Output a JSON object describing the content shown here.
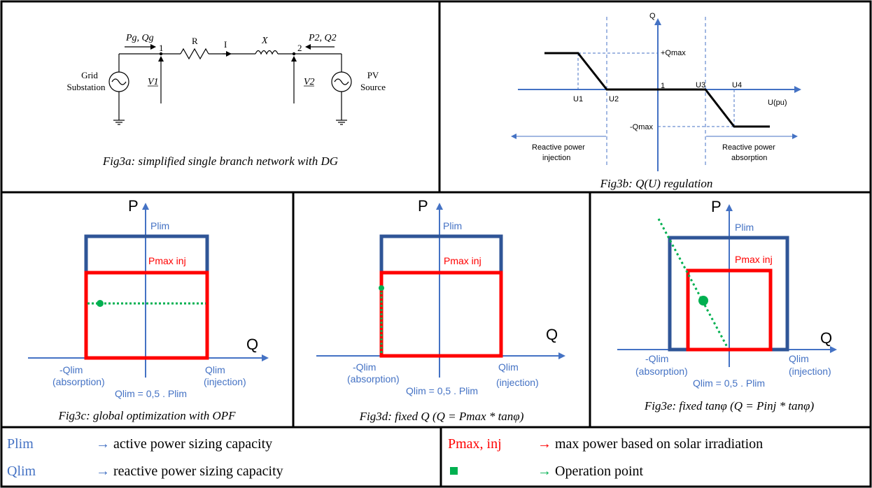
{
  "fig3a": {
    "caption": "Fig3a: simplified single branch network with DG",
    "grid_label_1": "Grid",
    "grid_label_2": "Substation",
    "pv_label_1": "PV",
    "pv_label_2": "Source",
    "pg_qg": "Pg, Qg",
    "p2_q2": "P2, Q2",
    "node1": "1",
    "node2": "2",
    "r": "R",
    "i": "I",
    "x": "X",
    "v1": "V1",
    "v2": "V2"
  },
  "fig3b": {
    "caption": "Fig3b: Q(U) regulation",
    "q_axis": "Q",
    "u_axis": "U(pu)",
    "qmax_pos": "+Qmax",
    "qmax_neg": "-Qmax",
    "one": "1",
    "u1": "U1",
    "u2": "U2",
    "u3": "U3",
    "u4": "U4",
    "inj_1": "Reactive power",
    "inj_2": "injection",
    "abs_1": "Reactive power",
    "abs_2": "absorption"
  },
  "panels": {
    "p": "P",
    "q": "Q",
    "plim": "Plim",
    "pmax": "Pmax inj",
    "neg_qlim": "-Qlim",
    "absorption": "(absorption)",
    "qlim": "Qlim",
    "injection": "(injection)",
    "qlim_eq": "Qlim = 0,5 . Plim"
  },
  "fig3c": {
    "caption": "Fig3c: global optimization with OPF"
  },
  "fig3d": {
    "caption": "Fig3d: fixed Q (Q = Pmax * tanφ)"
  },
  "fig3e": {
    "caption": "Fig3e: fixed tanφ (Q = Pinj * tanφ)"
  },
  "legend": {
    "plim_sym": "Plim",
    "plim_desc": "active power sizing capacity",
    "qlim_sym": "Qlim",
    "qlim_desc": "reactive power sizing capacity",
    "pmax_sym": "Pmax, inj",
    "pmax_desc": "max power based on solar irradiation",
    "op_desc": "Operation point",
    "arrow": "→"
  },
  "colors": {
    "blue": "#4472c4",
    "dark_blue": "#2f5597",
    "red": "#ff0000",
    "green": "#00b050"
  }
}
